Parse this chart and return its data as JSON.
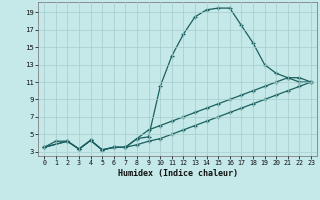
{
  "xlabel": "Humidex (Indice chaleur)",
  "bg_color": "#c5e8e8",
  "grid_color": "#a8cccc",
  "line_color": "#1a6060",
  "spine_color": "#808080",
  "xlim": [
    -0.5,
    23.5
  ],
  "ylim": [
    2.5,
    20.2
  ],
  "xticks": [
    0,
    1,
    2,
    3,
    4,
    5,
    6,
    7,
    8,
    9,
    10,
    11,
    12,
    13,
    14,
    15,
    16,
    17,
    18,
    19,
    20,
    21,
    22,
    23
  ],
  "yticks": [
    3,
    5,
    7,
    9,
    11,
    13,
    15,
    17,
    19
  ],
  "line1_x": [
    0,
    1,
    2,
    3,
    4,
    5,
    6,
    7,
    8,
    9,
    10,
    11,
    12,
    13,
    14,
    15,
    16,
    17,
    18,
    19,
    20,
    21,
    22,
    23
  ],
  "line1_y": [
    3.5,
    4.2,
    4.2,
    3.3,
    4.3,
    3.2,
    3.5,
    3.5,
    4.5,
    4.7,
    10.5,
    14.0,
    16.5,
    18.5,
    19.3,
    19.5,
    19.5,
    17.5,
    15.5,
    13.0,
    12.0,
    11.5,
    11.0,
    11.0
  ],
  "line2_x": [
    0,
    2,
    3,
    4,
    5,
    6,
    7,
    8,
    9,
    10,
    11,
    12,
    13,
    14,
    15,
    16,
    17,
    18,
    19,
    20,
    21,
    22,
    23
  ],
  "line2_y": [
    3.5,
    4.2,
    3.3,
    4.3,
    3.2,
    3.5,
    3.5,
    4.5,
    5.5,
    6.0,
    6.5,
    7.0,
    7.5,
    8.0,
    8.5,
    9.0,
    9.5,
    10.0,
    10.5,
    11.0,
    11.5,
    11.5,
    11.0
  ],
  "line3_x": [
    0,
    2,
    3,
    4,
    5,
    6,
    7,
    8,
    9,
    10,
    11,
    12,
    13,
    14,
    15,
    16,
    17,
    18,
    19,
    20,
    21,
    22,
    23
  ],
  "line3_y": [
    3.5,
    4.2,
    3.3,
    4.3,
    3.2,
    3.5,
    3.5,
    3.8,
    4.2,
    4.5,
    5.0,
    5.5,
    6.0,
    6.5,
    7.0,
    7.5,
    8.0,
    8.5,
    9.0,
    9.5,
    10.0,
    10.5,
    11.0
  ]
}
